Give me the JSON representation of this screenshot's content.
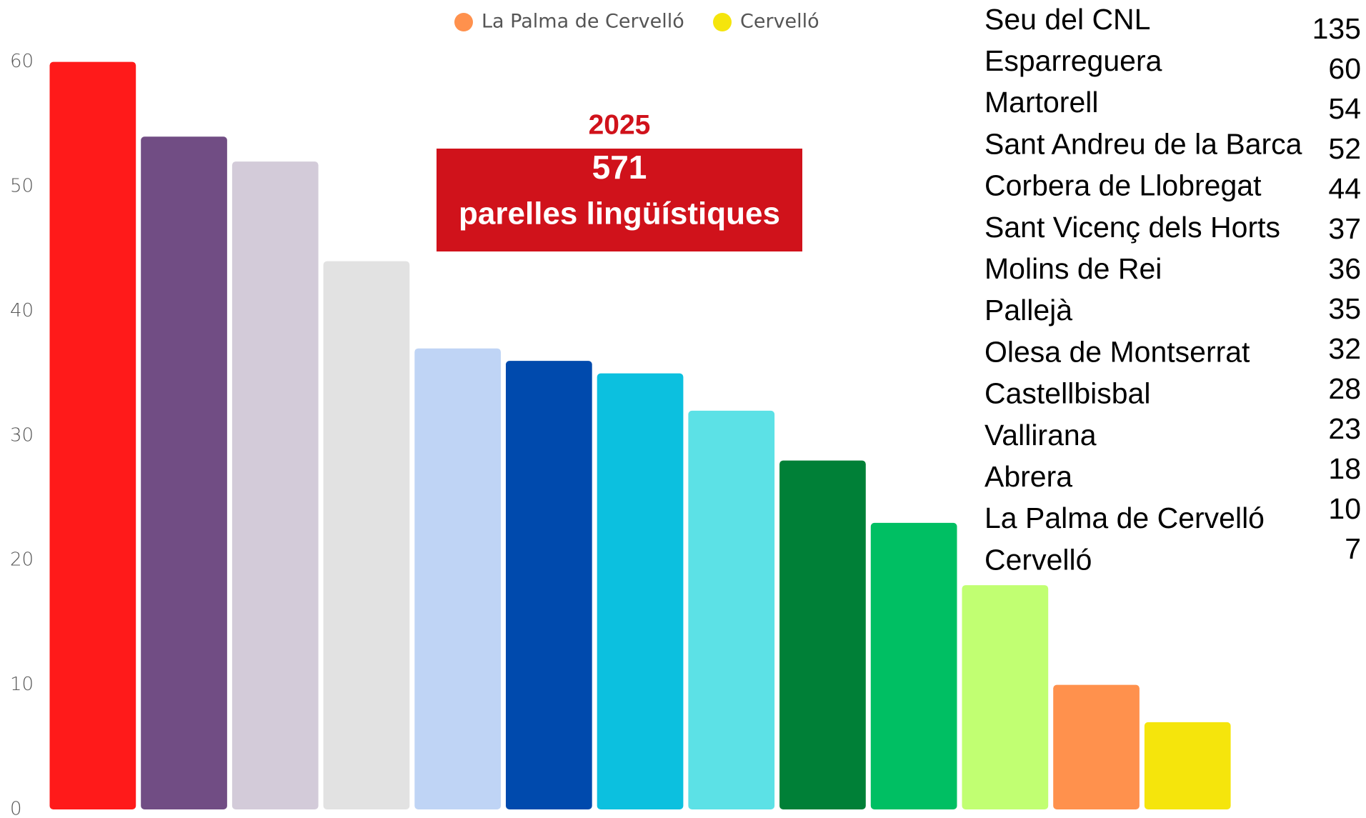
{
  "chart_data": {
    "type": "bar",
    "categories": [
      null,
      null,
      null,
      null,
      null,
      null,
      null,
      null,
      null,
      null,
      null,
      null,
      null
    ],
    "values": [
      60,
      54,
      52,
      44,
      37,
      36,
      35,
      32,
      28,
      23,
      18,
      10,
      7
    ],
    "colors": [
      "#ff1a1a",
      "#714d84",
      "#d3cbd9",
      "#e2e2e2",
      "#bfd4f5",
      "#004aad",
      "#0cc0df",
      "#5ce1e6",
      "#008037",
      "#00bf63",
      "#c1ff72",
      "#ff914d",
      "#f5e50c"
    ],
    "legend": [
      {
        "name": "La Palma de Cervelló",
        "color": "#ff914d"
      },
      {
        "name": "Cervelló",
        "color": "#f5e50c"
      }
    ],
    "legend_position": "top",
    "ylim": [
      0,
      60
    ],
    "yticks": [
      0,
      10,
      20,
      30,
      40,
      50,
      60
    ],
    "grid": false,
    "annotations": [
      "2025",
      "571",
      "parelles lingüístiques"
    ]
  },
  "table": {
    "rows": [
      [
        "Seu del CNL",
        135
      ],
      [
        "Esparreguera",
        60
      ],
      [
        "Martorell",
        54
      ],
      [
        "Sant Andreu de la Barca",
        52
      ],
      [
        "Corbera de Llobregat",
        44
      ],
      [
        "Sant Vicenç dels Horts",
        37
      ],
      [
        "Molins de Rei",
        36
      ],
      [
        "Pallejà",
        35
      ],
      [
        "Olesa de Montserrat",
        32
      ],
      [
        "Castellbisbal",
        28
      ],
      [
        "Vallirana",
        23
      ],
      [
        "Abrera",
        18
      ],
      [
        "La Palma de Cervelló",
        10
      ],
      [
        "Cervelló",
        7
      ]
    ]
  }
}
